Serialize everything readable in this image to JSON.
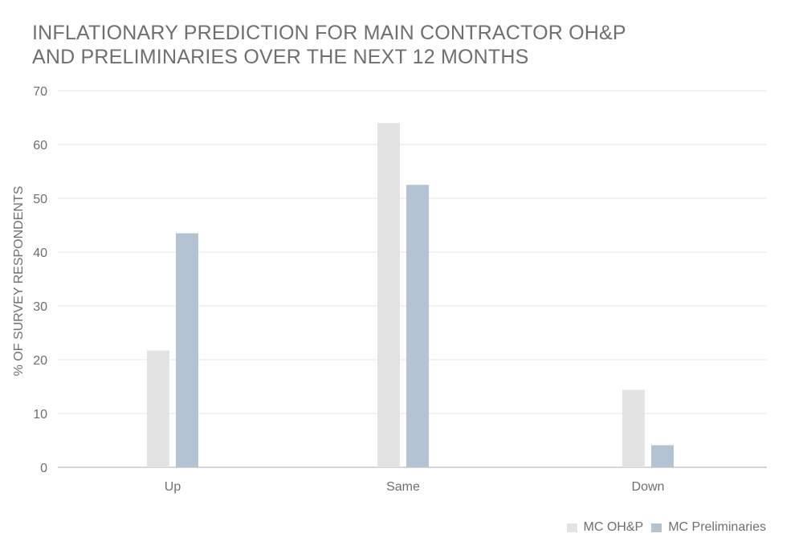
{
  "chart_data": {
    "type": "bar",
    "title_lines": [
      "INFLATIONARY PREDICTION FOR MAIN CONTRACTOR OH&P",
      "AND PRELIMINARIES OVER THE NEXT 12 MONTHS"
    ],
    "ylabel": "% OF SURVEY RESPONDENTS",
    "xlabel": "",
    "categories": [
      "Up",
      "Same",
      "Down"
    ],
    "series": [
      {
        "name": "MC OH&P",
        "color": "#e3e3e3",
        "values": [
          21.7,
          64.0,
          14.4
        ]
      },
      {
        "name": "MC Preliminaries",
        "color": "#b4c3d2",
        "values": [
          43.5,
          52.5,
          4.1
        ]
      }
    ],
    "ylim": [
      0,
      70
    ],
    "yticks": [
      0,
      10,
      20,
      30,
      40,
      50,
      60,
      70
    ],
    "grid": true,
    "legend_position": "bottom-right"
  }
}
